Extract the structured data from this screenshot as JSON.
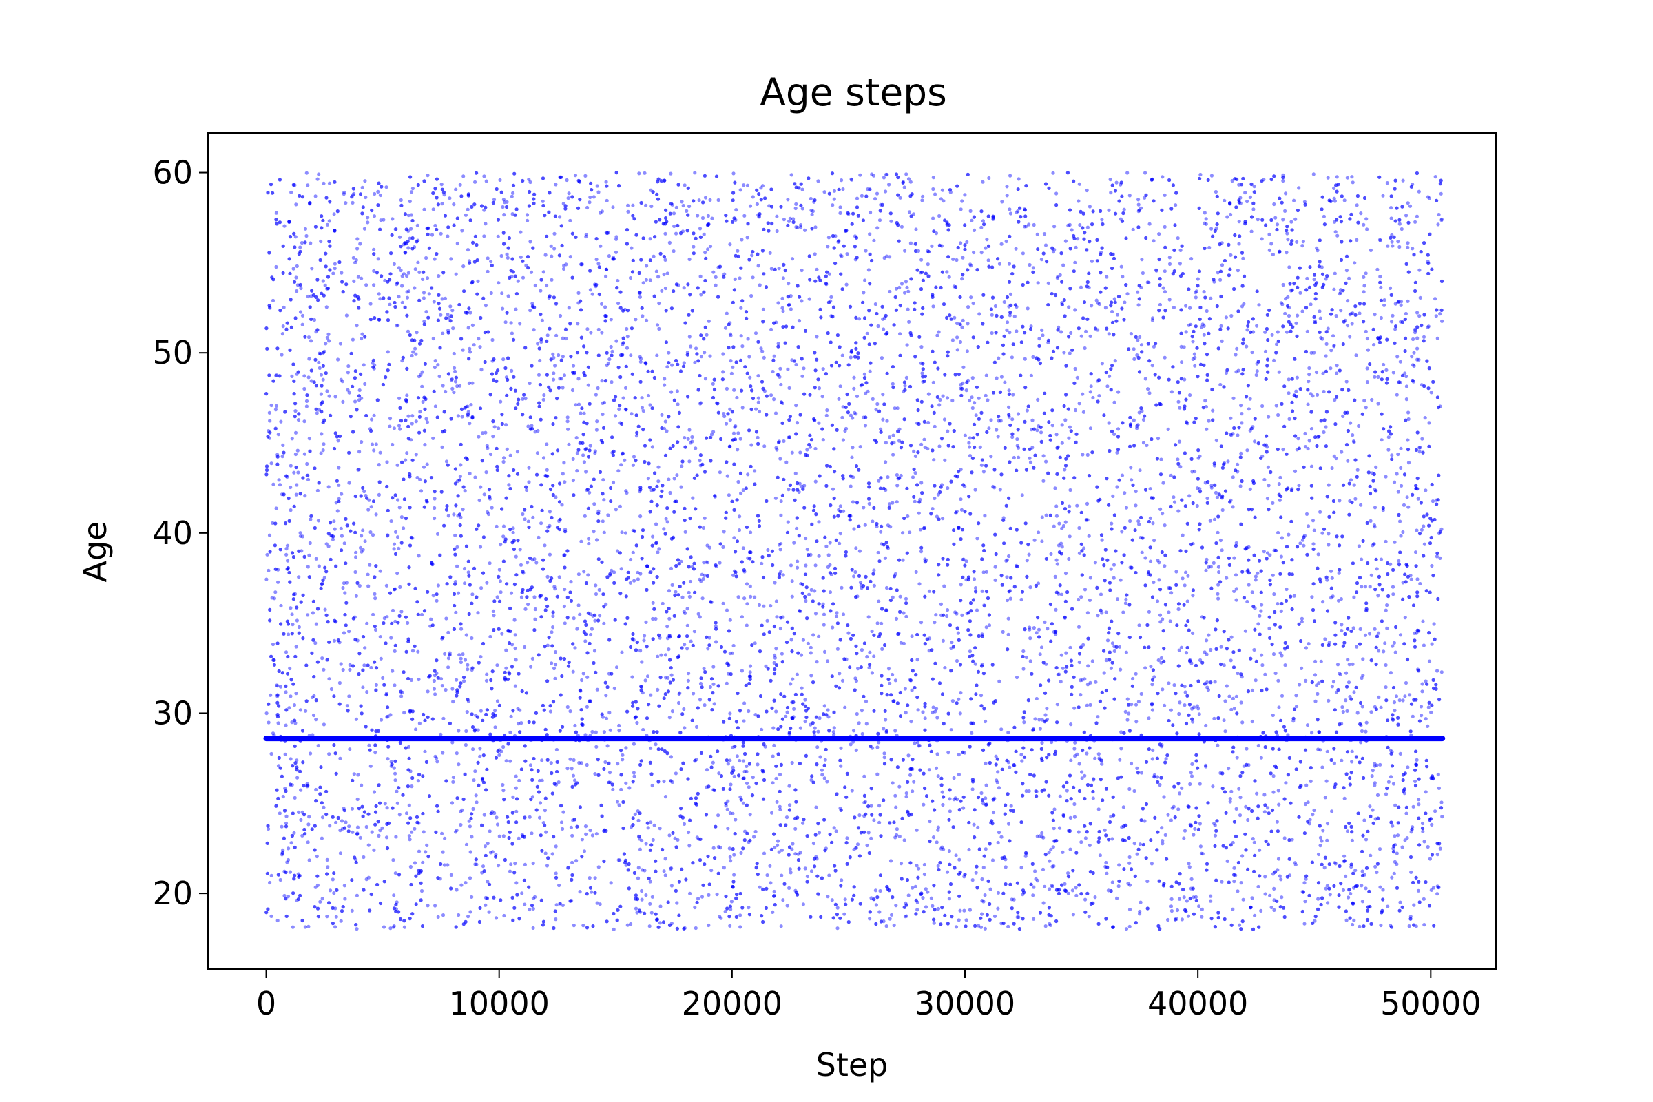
{
  "chart_data": {
    "type": "scatter",
    "title": "Age steps",
    "xlabel": "Step",
    "ylabel": "Age",
    "xlim": [
      -2500,
      52800
    ],
    "ylim": [
      15.8,
      62.2
    ],
    "xticks": [
      0,
      10000,
      20000,
      30000,
      40000,
      50000
    ],
    "yticks": [
      20,
      30,
      40,
      50,
      60
    ],
    "grid": false,
    "legend": "none",
    "scatter": {
      "x_range": [
        0,
        50500
      ],
      "y_range": [
        18,
        60
      ],
      "approx_point_count": 12000,
      "color": "#0000ff",
      "opacity": 0.45
    },
    "series": [
      {
        "kind": "line",
        "x": [
          0,
          50500
        ],
        "y": [
          28.6,
          28.6
        ],
        "color": "#0000ff"
      }
    ]
  }
}
